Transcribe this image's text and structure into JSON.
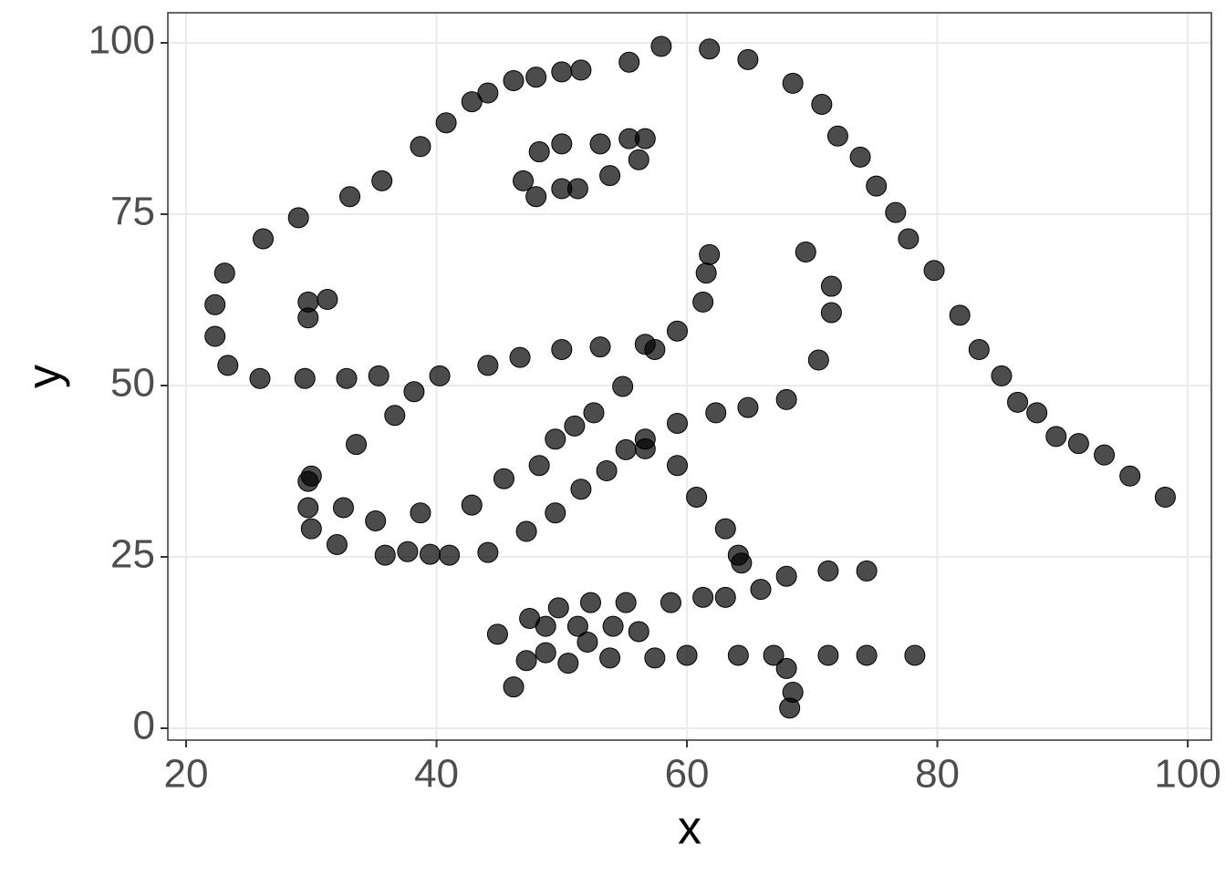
{
  "chart_data": {
    "type": "scatter",
    "x_label": "x",
    "y_label": "y",
    "x": [
      55.3846,
      51.5385,
      46.1538,
      42.8205,
      40.7692,
      38.7179,
      35.641,
      33.0769,
      28.9744,
      26.1538,
      23.0769,
      22.3077,
      22.3077,
      23.3333,
      25.8974,
      29.4872,
      32.8205,
      35.3846,
      40.2564,
      44.1026,
      46.6667,
      50,
      53.0769,
      56.6667,
      59.2308,
      61.2821,
      61.5385,
      61.7949,
      57.4359,
      54.8718,
      52.5641,
      48.2051,
      49.4872,
      51.0256,
      45.3846,
      42.8205,
      38.7179,
      35.1282,
      32.5641,
      30,
      33.5897,
      36.6667,
      38.2051,
      29.7436,
      29.7436,
      30,
      32.0513,
      35.8974,
      41.0256,
      44.1026,
      47.1795,
      49.4872,
      51.5385,
      53.5897,
      55.1282,
      56.6667,
      59.2308,
      62.3077,
      64.8718,
      67.9487,
      70.5128,
      71.5385,
      71.5385,
      69.4872,
      46.9231,
      48.2051,
      50,
      53.0769,
      55.3846,
      56.6667,
      56.1538,
      53.8462,
      51.2821,
      50,
      47.9487,
      29.7436,
      29.7436,
      31.2821,
      57.9487,
      61.7949,
      64.8718,
      68.4615,
      70.7692,
      72.0513,
      73.8462,
      75.1282,
      76.6667,
      77.6923,
      79.7436,
      81.7949,
      83.3333,
      85.1282,
      86.4103,
      87.9487,
      89.4872,
      93.3333,
      95.3846,
      98.2051,
      56.6667,
      59.2308,
      60.7692,
      63.0769,
      64.1026,
      64.359,
      74.359,
      71.2821,
      67.9487,
      65.8974,
      63.0769,
      61.2821,
      58.7179,
      55.1282,
      52.3077,
      49.7436,
      47.4359,
      44.8718,
      48.7179,
      51.2821,
      54.1026,
      56.1538,
      52.0513,
      48.7179,
      47.1795,
      46.1538,
      50.5128,
      53.8462,
      57.4359,
      60,
      64.1026,
      66.9231,
      71.2821,
      74.359,
      78.2051,
      67.9487,
      68.4615,
      68.2051,
      37.6923,
      39.4872,
      91.2821,
      50,
      47.9487,
      44.1026
    ],
    "y": [
      97.1795,
      96.0256,
      94.4872,
      91.4103,
      88.3333,
      84.8718,
      79.8718,
      77.5641,
      74.4872,
      71.4103,
      66.4103,
      61.7949,
      57.1795,
      52.9487,
      51.0256,
      51.0256,
      51.0256,
      51.4103,
      51.4103,
      52.9487,
      54.1026,
      55.2564,
      55.641,
      56.0256,
      57.9487,
      62.1795,
      66.4103,
      69.1026,
      55.2564,
      49.8718,
      46.0256,
      38.3333,
      42.1795,
      44.1026,
      36.4103,
      32.5641,
      31.4103,
      30.2564,
      32.1795,
      36.7949,
      41.4103,
      45.641,
      49.1026,
      36.0256,
      32.1795,
      29.1026,
      26.7949,
      25.2564,
      25.2564,
      25.641,
      28.718,
      31.4103,
      34.8718,
      37.5641,
      40.641,
      42.1795,
      44.4872,
      46.0256,
      46.7949,
      47.9487,
      53.718,
      60.641,
      64.4872,
      69.4872,
      79.8718,
      84.1026,
      85.2564,
      85.2564,
      86.0256,
      86.0256,
      82.9487,
      80.641,
      78.718,
      78.718,
      77.5641,
      59.8718,
      62.1795,
      62.5641,
      99.4872,
      99.1026,
      97.5641,
      94.1026,
      91.0256,
      86.4103,
      83.3333,
      79.1026,
      75.2564,
      71.4103,
      66.7949,
      60.2564,
      55.2564,
      51.4103,
      47.5641,
      46.0256,
      42.5641,
      39.8718,
      36.7949,
      33.718,
      40.7692,
      38.3333,
      33.718,
      29.1026,
      25.2564,
      24.1026,
      22.9487,
      22.9487,
      22.1795,
      20.2564,
      19.1026,
      19.1026,
      18.3333,
      18.3333,
      18.3333,
      17.5641,
      16.0256,
      13.718,
      14.8718,
      14.8718,
      14.8718,
      14.1026,
      12.5641,
      11.0256,
      9.8718,
      6.0256,
      9.4872,
      10.2564,
      10.2564,
      10.641,
      10.641,
      10.641,
      10.641,
      10.641,
      10.641,
      8.718,
      5.2564,
      2.9487,
      25.7692,
      25.3846,
      41.5385,
      95.7692,
      95,
      92.6923
    ],
    "color": "#000000",
    "xlim": [
      18.54,
      101.89
    ],
    "ylim": [
      -1.73,
      104.39
    ],
    "xticks": [
      20,
      40,
      60,
      80,
      100
    ],
    "yticks": [
      0,
      25,
      50,
      75,
      100
    ],
    "grid": true
  }
}
